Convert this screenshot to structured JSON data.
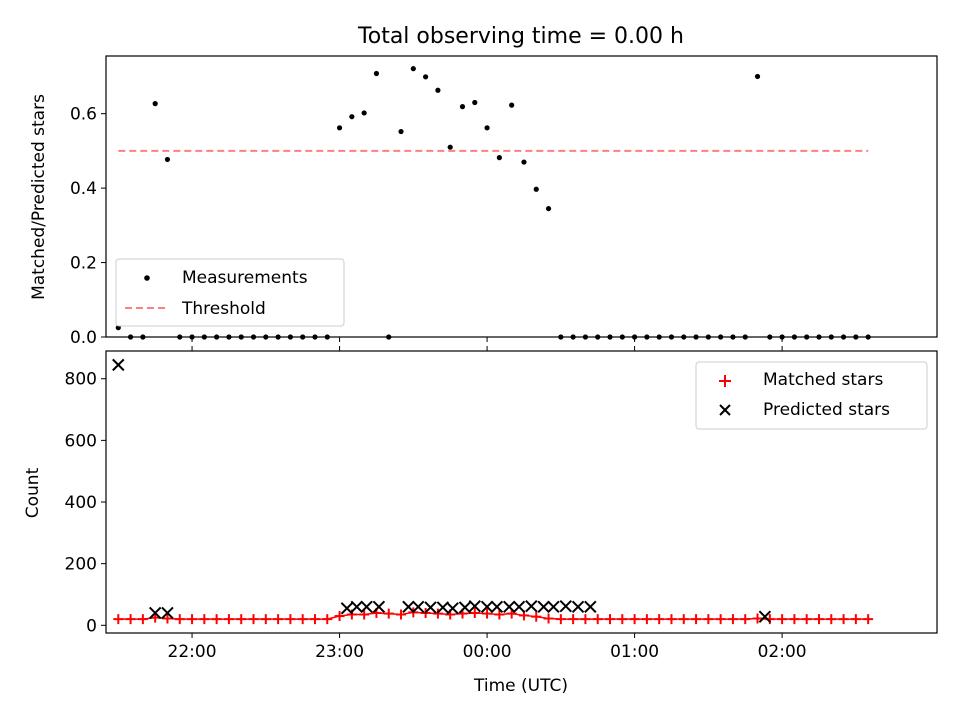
{
  "chart_data": [
    {
      "type": "scatter",
      "title": "Total observing time = 0.00 h",
      "xlabel": "",
      "ylabel": "Matched/Predicted stars",
      "xlim": [
        "21:25",
        "03:03"
      ],
      "ylim": [
        0,
        0.755
      ],
      "xticks": [
        "22:00",
        "23:00",
        "00:00",
        "01:00",
        "02:00"
      ],
      "yticks": [
        0.0,
        0.2,
        0.4,
        0.6
      ],
      "ytick_labels": [
        "0.0",
        "0.2",
        "0.4",
        "0.6"
      ],
      "legend_position": "lower-left",
      "series": [
        {
          "name": "Measurements",
          "kind": "scatter",
          "marker": "dot",
          "color": "#000000",
          "x": [
            "21:30",
            "21:35",
            "21:40",
            "21:45",
            "21:50",
            "21:55",
            "22:00",
            "22:05",
            "22:10",
            "22:15",
            "22:20",
            "22:25",
            "22:30",
            "22:35",
            "22:40",
            "22:45",
            "22:50",
            "22:55",
            "23:00",
            "23:05",
            "23:10",
            "23:15",
            "23:20",
            "23:25",
            "23:30",
            "23:35",
            "23:40",
            "23:45",
            "23:50",
            "23:55",
            "00:00",
            "00:05",
            "00:10",
            "00:15",
            "00:20",
            "00:25",
            "00:30",
            "00:35",
            "00:40",
            "00:45",
            "00:50",
            "00:55",
            "01:00",
            "01:05",
            "01:10",
            "01:15",
            "01:20",
            "01:25",
            "01:30",
            "01:35",
            "01:40",
            "01:45",
            "01:50",
            "01:55",
            "02:00",
            "02:05",
            "02:10",
            "02:15",
            "02:20",
            "02:25",
            "02:30",
            "02:35"
          ],
          "y": [
            0.025,
            0.0,
            0.0,
            0.627,
            0.477,
            0.0,
            0.0,
            0.0,
            0.0,
            0.0,
            0.0,
            0.0,
            0.0,
            0.0,
            0.0,
            0.0,
            0.0,
            0.0,
            0.562,
            0.592,
            0.602,
            0.708,
            0.0,
            0.552,
            0.721,
            0.699,
            0.663,
            0.51,
            0.619,
            0.63,
            0.562,
            0.482,
            0.623,
            0.47,
            0.397,
            0.345,
            0.0,
            0.0,
            0.0,
            0.0,
            0.0,
            0.0,
            0.0,
            0.0,
            0.0,
            0.0,
            0.0,
            0.0,
            0.0,
            0.0,
            0.0,
            0.0,
            0.7,
            0.0,
            0.0,
            0.0,
            0.0,
            0.0,
            0.0,
            0.0,
            0.0,
            0.0
          ]
        },
        {
          "name": "Threshold",
          "kind": "line",
          "dashed": true,
          "color": "#ff7f7f",
          "x": [
            "21:30",
            "02:35"
          ],
          "y": [
            0.5,
            0.5
          ]
        }
      ]
    },
    {
      "type": "scatter",
      "title": "",
      "xlabel": "Time (UTC)",
      "ylabel": "Count",
      "xlim": [
        "21:25",
        "03:03"
      ],
      "ylim": [
        -25,
        890
      ],
      "xticks": [
        "22:00",
        "23:00",
        "00:00",
        "01:00",
        "02:00"
      ],
      "yticks": [
        0,
        200,
        400,
        600,
        800
      ],
      "ytick_labels": [
        "0",
        "200",
        "400",
        "600",
        "800"
      ],
      "legend_position": "upper-right",
      "series": [
        {
          "name": "Matched stars",
          "kind": "scatter",
          "marker": "plus",
          "color": "#ff0000",
          "connect": true,
          "x": [
            "21:30",
            "21:35",
            "21:40",
            "21:45",
            "21:50",
            "21:55",
            "22:00",
            "22:05",
            "22:10",
            "22:15",
            "22:20",
            "22:25",
            "22:30",
            "22:35",
            "22:40",
            "22:45",
            "22:50",
            "22:55",
            "23:00",
            "23:05",
            "23:10",
            "23:15",
            "23:20",
            "23:25",
            "23:30",
            "23:35",
            "23:40",
            "23:45",
            "23:50",
            "23:55",
            "00:00",
            "00:05",
            "00:10",
            "00:15",
            "00:20",
            "00:25",
            "00:30",
            "00:35",
            "00:40",
            "00:45",
            "00:50",
            "00:55",
            "01:00",
            "01:05",
            "01:10",
            "01:15",
            "01:20",
            "01:25",
            "01:30",
            "01:35",
            "01:40",
            "01:45",
            "01:50",
            "01:55",
            "02:00",
            "02:05",
            "02:10",
            "02:15",
            "02:20",
            "02:25",
            "02:30",
            "02:35"
          ],
          "y": [
            20,
            20,
            20,
            25,
            22,
            20,
            20,
            20,
            20,
            20,
            20,
            20,
            20,
            20,
            20,
            20,
            20,
            20,
            30,
            35,
            35,
            40,
            38,
            35,
            42,
            40,
            38,
            35,
            38,
            40,
            38,
            35,
            38,
            32,
            28,
            22,
            20,
            20,
            20,
            20,
            20,
            20,
            20,
            20,
            20,
            20,
            20,
            20,
            20,
            20,
            20,
            20,
            22,
            20,
            20,
            20,
            20,
            20,
            20,
            20,
            20,
            20
          ]
        },
        {
          "name": "Predicted stars",
          "kind": "scatter",
          "marker": "x",
          "color": "#000000",
          "x": [
            "21:30",
            "21:45",
            "21:50",
            "23:03",
            "23:07",
            "23:11",
            "23:16",
            "23:28",
            "23:32",
            "23:37",
            "23:42",
            "23:46",
            "23:51",
            "23:55",
            "00:00",
            "00:04",
            "00:09",
            "00:13",
            "00:18",
            "00:23",
            "00:27",
            "00:32",
            "00:37",
            "00:42",
            "01:53"
          ],
          "y": [
            845,
            40,
            40,
            55,
            60,
            60,
            60,
            60,
            60,
            58,
            58,
            55,
            58,
            62,
            60,
            60,
            60,
            60,
            62,
            60,
            60,
            62,
            60,
            60,
            28
          ]
        }
      ]
    }
  ]
}
